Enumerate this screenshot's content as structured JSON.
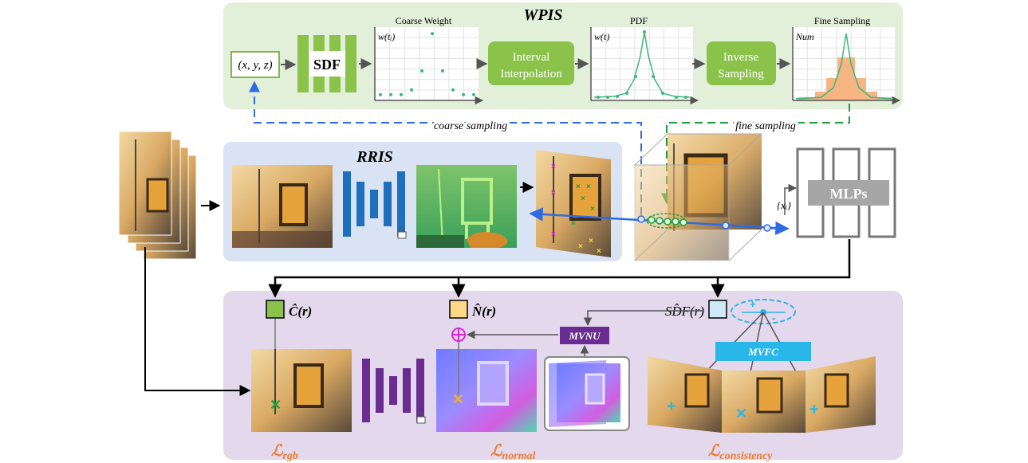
{
  "wpis": {
    "title": "WPIS",
    "input_label": "(x, y, z)",
    "sdf_label": "SDF",
    "coarse_chart": {
      "title": "Coarse Weight",
      "ylabel": "w(tᵢ)",
      "points": [
        0.05,
        0.05,
        0.05,
        0.12,
        0.4,
        0.95,
        0.4,
        0.12,
        0.05,
        0.05
      ]
    },
    "interval_label": [
      "Interval",
      "Interpolation"
    ],
    "pdf_chart": {
      "title": "PDF",
      "ylabel": "w(t)"
    },
    "inverse_label": [
      "Inverse",
      "Sampling"
    ],
    "fine_chart": {
      "title": "Fine Sampling",
      "ylabel": "Num"
    }
  },
  "coarse_sampling": "coarse sampling",
  "fine_sampling": "fine sampling",
  "rris": {
    "title": "RRIS"
  },
  "mlp": {
    "label": "MLPs",
    "input": "{xᵢ}"
  },
  "loss": {
    "c_label": "Ĉ(r)",
    "n_label": "N̂(r)",
    "sdf_label": "SD̂F(r)",
    "mvnu": "MVNU",
    "mvfc": "MVFC",
    "l_rgb": "rgb",
    "l_normal": "normal",
    "l_consistency": "consistency",
    "L_symbol": "ℒ"
  },
  "colors": {
    "green_panel": "#e2efd9",
    "blue_panel": "#dae3f3",
    "purple_panel": "#e3d8ec",
    "green": "#8bc34a",
    "blue_net": "#1f6fbf",
    "purple_net": "#6a2c91",
    "orange": "#ed7d31",
    "cyan": "#29b6e8"
  }
}
